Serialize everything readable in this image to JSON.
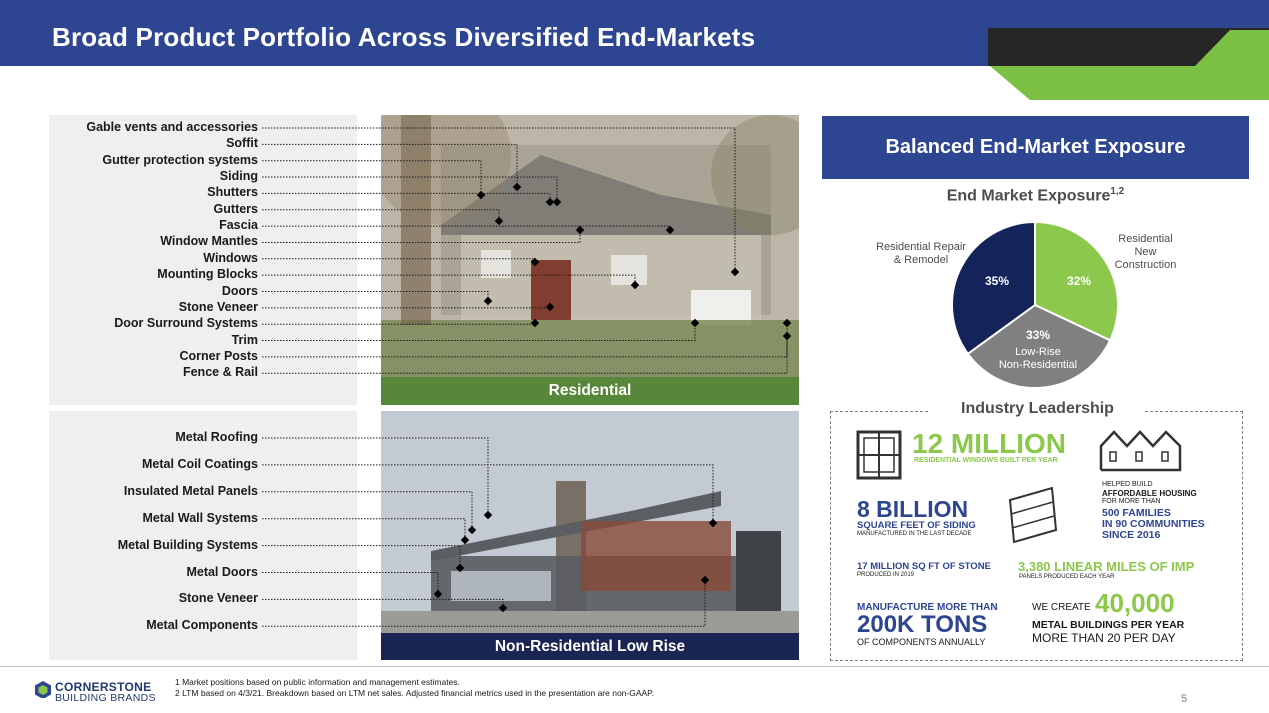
{
  "header": {
    "title": "Broad Product Portfolio Across Diversified End-Markets"
  },
  "residential": {
    "band_label": "Residential",
    "labels": [
      "Gable vents and accessories",
      "Soffit",
      "Gutter protection systems",
      "Siding",
      "Shutters",
      "Gutters",
      "Fascia",
      "Window Mantles",
      "Windows",
      "Mounting Blocks",
      "Doors",
      "Stone Veneer",
      "Door Surround Systems",
      "Trim",
      "Corner Posts",
      "Fence & Rail"
    ]
  },
  "nonresidential": {
    "band_label": "Non-Residential Low Rise",
    "labels": [
      "Metal Roofing",
      "Metal Coil Coatings",
      "Insulated Metal Panels",
      "Metal Wall Systems",
      "Metal Building Systems",
      "Metal Doors",
      "Stone Veneer",
      "Metal Components"
    ]
  },
  "exposure": {
    "banner": "Balanced End-Market Exposure",
    "chart_title": "End Market Exposure",
    "chart_title_sup": "1,2"
  },
  "chart_data": {
    "type": "pie",
    "title": "End Market Exposure",
    "slices": [
      {
        "name": "Residential New Construction",
        "value": 32,
        "color": "#8cc84b"
      },
      {
        "name": "Low-Rise Non-Residential",
        "value": 33,
        "color": "#808080"
      },
      {
        "name": "Residential Repair & Remodel",
        "value": 35,
        "color": "#14245a"
      }
    ],
    "labels": {
      "rnc": [
        "Residential",
        "New",
        "Construction"
      ],
      "rrr": [
        "Residential Repair",
        "& Remodel"
      ],
      "lrnr": [
        "Low-Rise",
        "Non-Residential"
      ]
    },
    "pcts": {
      "rnc": "32%",
      "lrnr": "33%",
      "rrr": "35%"
    }
  },
  "industry": {
    "title": "Industry Leadership",
    "windows_big": "12 MILLION",
    "windows_small": "RESIDENTIAL WINDOWS BUILT PER YEAR",
    "housing_1": "HELPED BUILD",
    "housing_2": "AFFORDABLE HOUSING",
    "housing_3": "FOR MORE THAN",
    "housing_4": "500 FAMILIES",
    "housing_5": "IN 90 COMMUNITIES",
    "housing_6": "SINCE 2016",
    "siding_big": "8 BILLION",
    "siding_mid": "SQUARE FEET OF SIDING",
    "siding_small": "MANUFACTURED IN THE LAST DECADE",
    "stone_big": "17 MILLION SQ FT OF STONE",
    "stone_small": "PRODUCED IN 2019",
    "imp_big": "3,380 LINEAR MILES OF IMP",
    "imp_small": "PANELS PRODUCED EACH YEAR",
    "comp_1": "MANUFACTURE MORE THAN",
    "comp_2": "200K TONS",
    "comp_3": "OF COMPONENTS ANNUALLY",
    "mb_1": "WE CREATE",
    "mb_2": "40,000",
    "mb_3": "METAL BUILDINGS PER YEAR",
    "mb_4": "MORE THAN 20 PER DAY"
  },
  "footer": {
    "logo_line1": "CORNERSTONE",
    "logo_line2": "BUILDING BRANDS",
    "note1": "1 Market positions based on public information and management estimates.",
    "note2": "2 LTM based on 4/3/21. Breakdown based on LTM net sales. Adjusted financial metrics used in the presentation are non-GAAP.",
    "page": "5"
  }
}
